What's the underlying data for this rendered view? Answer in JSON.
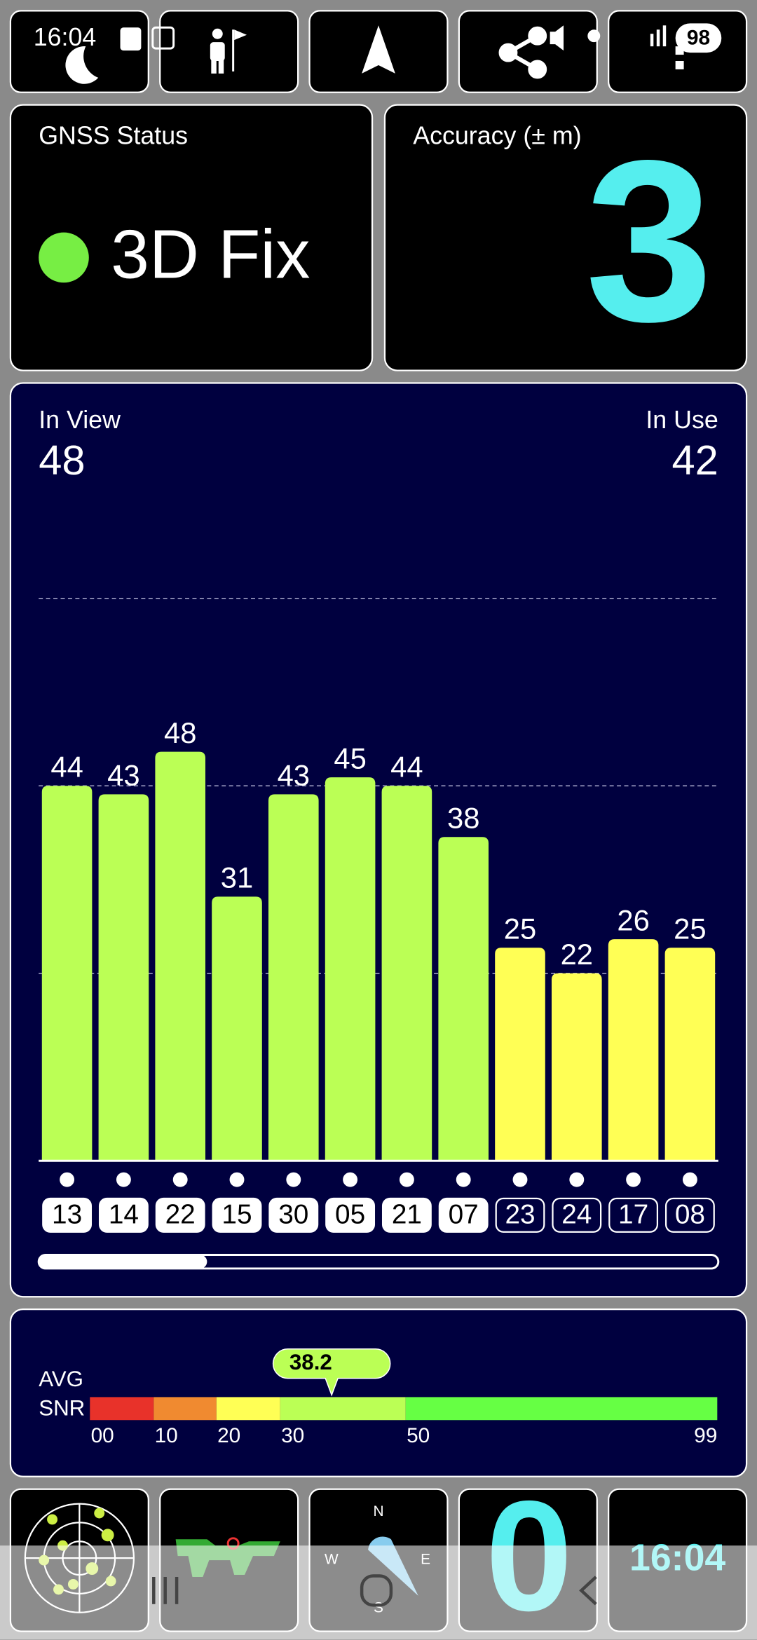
{
  "status_bar": {
    "time": "16:04",
    "battery": 98
  },
  "gnss_status": {
    "label": "GNSS Status",
    "fix": "3D Fix"
  },
  "accuracy": {
    "label": "Accuracy (± m)",
    "value": 3
  },
  "satellites": {
    "in_view_label": "In View",
    "in_view": 48,
    "in_use_label": "In Use",
    "in_use": 42
  },
  "chart_data": {
    "type": "bar",
    "categories": [
      "13",
      "14",
      "22",
      "15",
      "30",
      "05",
      "21",
      "07",
      "23",
      "24",
      "17",
      "08"
    ],
    "values": [
      44,
      43,
      48,
      31,
      43,
      45,
      44,
      38,
      25,
      22,
      26,
      25
    ],
    "colors": [
      "#bbff55",
      "#bbff55",
      "#bbff55",
      "#bbff55",
      "#bbff55",
      "#bbff55",
      "#bbff55",
      "#bbff55",
      "#ffff55",
      "#ffff55",
      "#ffff55",
      "#ffff55"
    ],
    "used": [
      true,
      true,
      true,
      true,
      true,
      true,
      true,
      true,
      false,
      false,
      false,
      false
    ],
    "ylim": [
      0,
      66
    ],
    "yticks": [
      22,
      44,
      66
    ],
    "grid": true
  },
  "snr": {
    "label_top": "AVG",
    "label_bottom": "SNR",
    "average": 38.2,
    "stops": [
      {
        "value": 0,
        "label": "00"
      },
      {
        "value": 10,
        "label": "10"
      },
      {
        "value": 20,
        "label": "20"
      },
      {
        "value": 30,
        "label": "30"
      },
      {
        "value": 50,
        "label": "50"
      },
      {
        "value": 99,
        "label": "99"
      }
    ],
    "colors": [
      "#e8322a",
      "#f08a30",
      "#ffff55",
      "#bbff55",
      "#66ff44"
    ]
  },
  "dock": {
    "north": "N",
    "east": "E",
    "south": "S",
    "west": "W",
    "count": 0,
    "time": "16:04"
  }
}
